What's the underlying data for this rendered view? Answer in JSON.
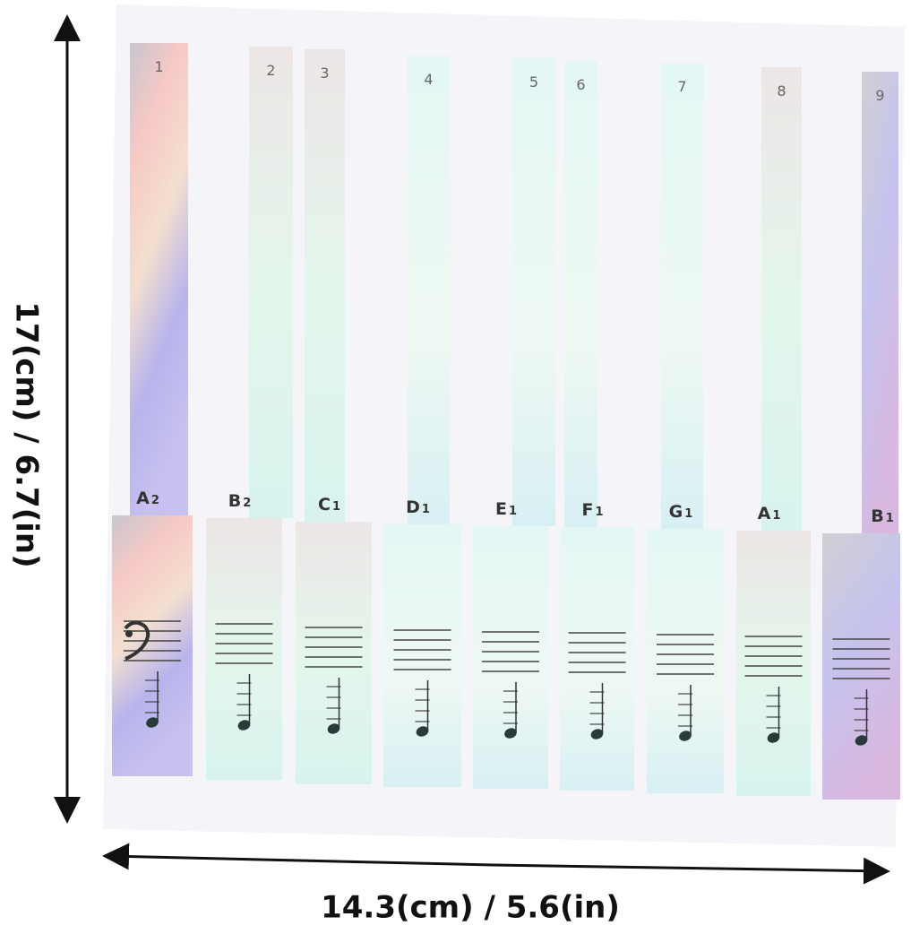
{
  "height_label": "17(cm) / 6.7(in)",
  "width_label": "14.3(cm) / 5.6(in)",
  "keys": [
    {
      "number": "1",
      "note": {
        "letter": "A",
        "sub": "2"
      }
    },
    {
      "number": "2",
      "note": {
        "letter": "B",
        "sub": "2"
      }
    },
    {
      "number": "3",
      "note": {
        "letter": "C",
        "sub": "1"
      }
    },
    {
      "number": "4",
      "note": {
        "letter": "D",
        "sub": "1"
      }
    },
    {
      "number": "5",
      "note": {
        "letter": "E",
        "sub": "1"
      }
    },
    {
      "number": "6",
      "note": {
        "letter": "F",
        "sub": "1"
      }
    },
    {
      "number": "7",
      "note": {
        "letter": "G",
        "sub": "1"
      }
    },
    {
      "number": "8",
      "note": {
        "letter": "A",
        "sub": "1"
      }
    },
    {
      "number": "9",
      "note": {
        "letter": "B",
        "sub": "1"
      }
    }
  ]
}
